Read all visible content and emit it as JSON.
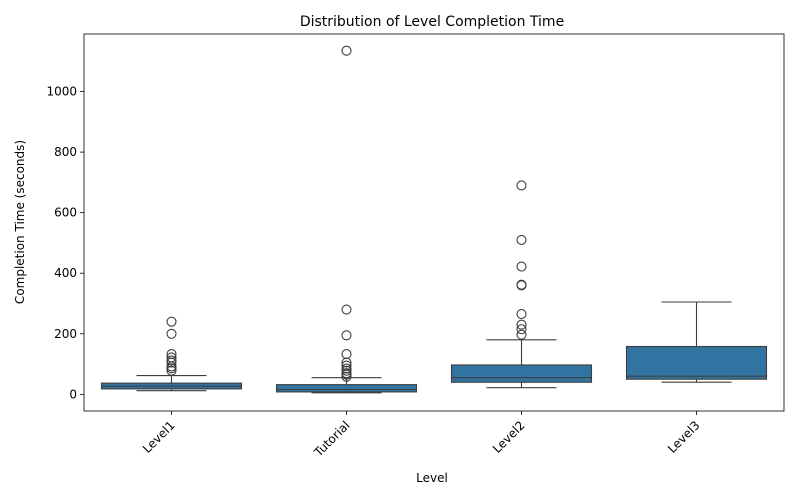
{
  "chart_data": {
    "type": "box",
    "title": "Distribution of Level Completion Time",
    "xlabel": "Level",
    "ylabel": "Completion Time (seconds)",
    "ylim": [
      -55,
      1190
    ],
    "yticks": [
      0,
      200,
      400,
      600,
      800,
      1000
    ],
    "categories": [
      "Level1",
      "Tutorial",
      "Level2",
      "Level3"
    ],
    "box_color": "#3274a1",
    "line_color": "#3d3d3d",
    "boxes": [
      {
        "category": "Level1",
        "whisker_low": 12,
        "q1": 18,
        "median": 27,
        "q3": 37,
        "whisker_high": 62,
        "outliers": [
          78,
          86,
          92,
          105,
          112,
          122,
          133,
          200,
          240
        ]
      },
      {
        "category": "Tutorial",
        "whisker_low": 5,
        "q1": 8,
        "median": 16,
        "q3": 32,
        "whisker_high": 55,
        "outliers": [
          58,
          65,
          70,
          78,
          85,
          95,
          105,
          133,
          195,
          280,
          1135
        ]
      },
      {
        "category": "Level2",
        "whisker_low": 22,
        "q1": 40,
        "median": 55,
        "q3": 97,
        "whisker_high": 180,
        "outliers": [
          197,
          215,
          230,
          265,
          360,
          362,
          422,
          510,
          690
        ]
      },
      {
        "category": "Level3",
        "whisker_low": 40,
        "q1": 50,
        "median": 60,
        "q3": 158,
        "whisker_high": 305,
        "outliers": []
      }
    ]
  }
}
